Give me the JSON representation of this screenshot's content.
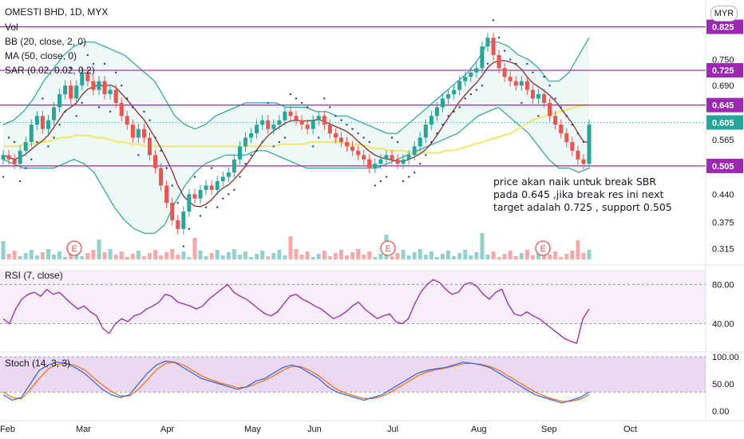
{
  "chart_data": {
    "type": "candlestick",
    "title": "OMESTI BHD, 1D, MYX",
    "currency": "MYR",
    "legend": [
      "Vol",
      "BB (20, close, 2, 0)",
      "MA (50, close, 0)",
      "SAR (0.02, 0.02, 0.2)"
    ],
    "price_axis_ticks": [
      "0.750",
      "0.690",
      "0.565",
      "0.440",
      "0.375",
      "0.315"
    ],
    "price_tick_values": [
      0.75,
      0.69,
      0.565,
      0.44,
      0.375,
      0.315
    ],
    "horizontal_levels": [
      {
        "label": "0.825",
        "value": 0.825
      },
      {
        "label": "0.725",
        "value": 0.725
      },
      {
        "label": "0.645",
        "value": 0.645
      },
      {
        "label": "0.505",
        "value": 0.505
      }
    ],
    "last_price": {
      "label": "0.605",
      "value": 0.605
    },
    "ylim": [
      0.29,
      0.85
    ],
    "months": [
      "Feb",
      "Mar",
      "Apr",
      "May",
      "Jun",
      "Jul",
      "Aug",
      "Sep",
      "Oct"
    ],
    "earnings_markers": [
      "E",
      "E",
      "E"
    ],
    "annotation": "price akan naik untuk break SBR pada 0.645 ,jika break res ini next target adalah 0.725 , support 0.505",
    "close": [
      0.53,
      0.52,
      0.51,
      0.54,
      0.56,
      0.6,
      0.62,
      0.59,
      0.61,
      0.64,
      0.67,
      0.69,
      0.66,
      0.69,
      0.72,
      0.7,
      0.68,
      0.7,
      0.67,
      0.68,
      0.65,
      0.62,
      0.6,
      0.57,
      0.59,
      0.57,
      0.53,
      0.5,
      0.46,
      0.42,
      0.38,
      0.36,
      0.4,
      0.44,
      0.43,
      0.45,
      0.46,
      0.45,
      0.47,
      0.48,
      0.49,
      0.52,
      0.55,
      0.57,
      0.58,
      0.6,
      0.61,
      0.59,
      0.6,
      0.61,
      0.63,
      0.62,
      0.61,
      0.6,
      0.59,
      0.61,
      0.62,
      0.6,
      0.58,
      0.57,
      0.56,
      0.55,
      0.54,
      0.53,
      0.52,
      0.5,
      0.51,
      0.52,
      0.53,
      0.52,
      0.51,
      0.52,
      0.53,
      0.55,
      0.57,
      0.6,
      0.62,
      0.64,
      0.66,
      0.67,
      0.68,
      0.7,
      0.71,
      0.72,
      0.73,
      0.78,
      0.8,
      0.76,
      0.73,
      0.71,
      0.7,
      0.69,
      0.7,
      0.68,
      0.66,
      0.67,
      0.65,
      0.62,
      0.6,
      0.58,
      0.56,
      0.54,
      0.52,
      0.51,
      0.6
    ],
    "ma50": [
      0.55,
      0.55,
      0.55,
      0.555,
      0.555,
      0.56,
      0.56,
      0.565,
      0.57,
      0.57,
      0.575,
      0.575,
      0.575,
      0.57,
      0.57,
      0.565,
      0.56,
      0.56,
      0.555,
      0.555,
      0.55,
      0.55,
      0.55,
      0.55,
      0.55,
      0.55,
      0.55,
      0.55,
      0.55,
      0.55,
      0.55,
      0.55,
      0.55,
      0.55,
      0.55,
      0.55,
      0.55,
      0.55,
      0.55,
      0.555,
      0.555,
      0.555,
      0.555,
      0.56,
      0.56,
      0.56,
      0.56,
      0.56,
      0.555,
      0.555,
      0.555,
      0.55,
      0.545,
      0.545,
      0.54,
      0.54,
      0.54,
      0.535,
      0.535,
      0.535,
      0.535,
      0.535,
      0.54,
      0.54,
      0.545,
      0.55,
      0.555,
      0.56,
      0.565,
      0.57,
      0.575,
      0.58,
      0.59,
      0.6,
      0.61,
      0.615,
      0.62,
      0.625,
      0.63,
      0.635,
      0.64,
      0.645,
      0.645
    ],
    "bb_upper": [
      0.6,
      0.61,
      0.63,
      0.66,
      0.7,
      0.73,
      0.76,
      0.78,
      0.79,
      0.79,
      0.78,
      0.77,
      0.76,
      0.74,
      0.72,
      0.7,
      0.66,
      0.62,
      0.6,
      0.59,
      0.6,
      0.62,
      0.63,
      0.64,
      0.65,
      0.65,
      0.65,
      0.65,
      0.64,
      0.64,
      0.64,
      0.63,
      0.63,
      0.62,
      0.62,
      0.61,
      0.6,
      0.59,
      0.58,
      0.58,
      0.6,
      0.62,
      0.64,
      0.66,
      0.68,
      0.7,
      0.72,
      0.75,
      0.79,
      0.79,
      0.78,
      0.76,
      0.75,
      0.73,
      0.7,
      0.7,
      0.72,
      0.76,
      0.8
    ],
    "bb_lower": [
      0.52,
      0.51,
      0.5,
      0.5,
      0.5,
      0.5,
      0.51,
      0.52,
      0.51,
      0.49,
      0.45,
      0.41,
      0.38,
      0.36,
      0.35,
      0.35,
      0.37,
      0.42,
      0.46,
      0.49,
      0.51,
      0.52,
      0.53,
      0.53,
      0.53,
      0.54,
      0.54,
      0.53,
      0.52,
      0.51,
      0.5,
      0.5,
      0.5,
      0.5,
      0.5,
      0.5,
      0.5,
      0.5,
      0.51,
      0.52,
      0.53,
      0.54,
      0.55,
      0.56,
      0.57,
      0.58,
      0.6,
      0.62,
      0.63,
      0.64,
      0.62,
      0.6,
      0.58,
      0.55,
      0.52,
      0.5,
      0.5,
      0.49,
      0.5
    ],
    "rsi": [
      45,
      40,
      55,
      65,
      70,
      72,
      68,
      75,
      70,
      72,
      66,
      60,
      55,
      58,
      52,
      48,
      35,
      30,
      40,
      45,
      42,
      48,
      50,
      55,
      58,
      62,
      70,
      68,
      62,
      60,
      58,
      55,
      58,
      65,
      70,
      75,
      80,
      72,
      68,
      65,
      60,
      55,
      50,
      48,
      52,
      60,
      68,
      70,
      65,
      62,
      58,
      55,
      50,
      45,
      48,
      52,
      58,
      62,
      55,
      50,
      45,
      48,
      50,
      42,
      40,
      45,
      60,
      72,
      80,
      85,
      82,
      75,
      70,
      72,
      80,
      82,
      78,
      70,
      65,
      72,
      75,
      60,
      50,
      48,
      52,
      48,
      45,
      40,
      35,
      30,
      25,
      22,
      20,
      45,
      55
    ],
    "rsi_levels": [
      "80.00",
      "40.00"
    ],
    "stoch_k": [
      30,
      20,
      25,
      50,
      75,
      85,
      90,
      88,
      80,
      70,
      55,
      40,
      30,
      25,
      30,
      50,
      70,
      85,
      92,
      90,
      80,
      70,
      60,
      55,
      50,
      45,
      40,
      45,
      55,
      60,
      70,
      80,
      85,
      80,
      70,
      60,
      45,
      35,
      30,
      25,
      20,
      25,
      30,
      40,
      50,
      60,
      70,
      75,
      78,
      80,
      85,
      90,
      88,
      85,
      80,
      70,
      60,
      50,
      40,
      30,
      25,
      20,
      15,
      20,
      25,
      35
    ],
    "stoch_d": [
      35,
      25,
      22,
      40,
      60,
      78,
      86,
      88,
      84,
      76,
      62,
      48,
      36,
      28,
      28,
      40,
      58,
      76,
      88,
      90,
      85,
      75,
      65,
      58,
      52,
      48,
      43,
      44,
      50,
      57,
      65,
      75,
      82,
      82,
      75,
      65,
      52,
      40,
      33,
      28,
      23,
      23,
      27,
      35,
      45,
      55,
      65,
      72,
      76,
      79,
      83,
      87,
      88,
      86,
      82,
      75,
      65,
      55,
      45,
      35,
      28,
      22,
      18,
      18,
      22,
      30
    ],
    "stoch_levels": [
      "100.00",
      "50.00",
      "0.00"
    ]
  },
  "ui": {
    "indicator_rsi": "RSI (7, close)",
    "indicator_stoch": "Stoch (14, 3, 3)"
  }
}
